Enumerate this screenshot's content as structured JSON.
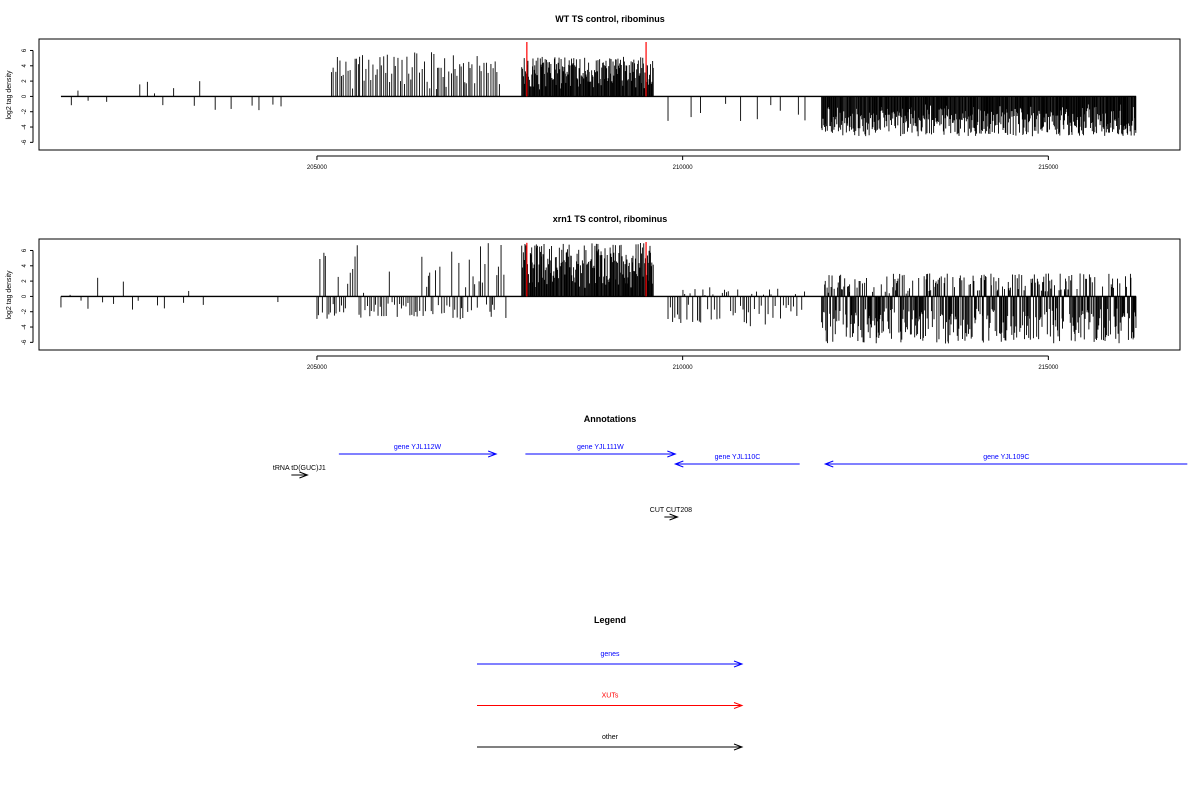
{
  "chart_data": [
    {
      "type": "bar",
      "title": "WT TS control, ribominus",
      "ylabel": "log2 tag density",
      "xlabel": "",
      "xlim": [
        201200,
        216800
      ],
      "ylim": [
        -7,
        7.5
      ],
      "xticks": [
        205000,
        210000,
        215000
      ],
      "yticks": [
        6,
        4,
        2,
        0,
        -2,
        -4,
        -6
      ],
      "grid": false,
      "segments": [
        {
          "name": "region-a",
          "x_start": 201500,
          "x_end": 204700,
          "y_min": -1.8,
          "y_max": 2.0,
          "density": "sparse"
        },
        {
          "name": "region-b",
          "x_start": 205200,
          "x_end": 207500,
          "y_min": 0,
          "y_max": 5.8,
          "density": "medium"
        },
        {
          "name": "region-c",
          "x_start": 207800,
          "x_end": 209600,
          "y_min": 0,
          "y_max": 5.2,
          "density": "dense"
        },
        {
          "name": "region-d",
          "x_start": 209800,
          "x_end": 211700,
          "y_min": -3.5,
          "y_max": 0,
          "density": "sparse"
        },
        {
          "name": "region-e",
          "x_start": 211900,
          "x_end": 216200,
          "y_min": -5.2,
          "y_max": 0,
          "density": "dense"
        }
      ],
      "highlighted": [
        {
          "x": 207870,
          "y": 7.5,
          "color": "#ff0000"
        },
        {
          "x": 209500,
          "y": 7.5,
          "color": "#ff0000"
        }
      ]
    },
    {
      "type": "bar",
      "title": "xrn1 TS control, ribominus",
      "ylabel": "log2 tag density",
      "xlabel": "",
      "xlim": [
        201200,
        216800
      ],
      "ylim": [
        -7,
        7.5
      ],
      "xticks": [
        205000,
        210000,
        215000
      ],
      "yticks": [
        6,
        4,
        2,
        0,
        -2,
        -4,
        -6
      ],
      "grid": false,
      "segments": [
        {
          "name": "region-a",
          "x_start": 201500,
          "x_end": 204700,
          "y_min": -1.8,
          "y_max": 2.5,
          "density": "sparse"
        },
        {
          "name": "region-b",
          "x_start": 205000,
          "x_end": 207600,
          "y_min": -3.0,
          "y_max": 7.0,
          "density": "medium"
        },
        {
          "name": "region-c",
          "x_start": 207800,
          "x_end": 209600,
          "y_min": 0,
          "y_max": 7.0,
          "density": "dense"
        },
        {
          "name": "region-d",
          "x_start": 209800,
          "x_end": 211700,
          "y_min": -4.0,
          "y_max": 1.2,
          "density": "medium"
        },
        {
          "name": "region-e",
          "x_start": 211900,
          "x_end": 216200,
          "y_min": -6.2,
          "y_max": 3.0,
          "density": "dense"
        }
      ],
      "highlighted": [
        {
          "x": 207870,
          "y": 7.0,
          "color": "#ff0000"
        },
        {
          "x": 209500,
          "y": 7.5,
          "color": "#ff0000"
        }
      ]
    }
  ],
  "annotations": {
    "title": "Annotations",
    "features": [
      {
        "label": "gene YJL112W",
        "color": "#0000ff",
        "x_start": 205300,
        "x_end": 207450,
        "strand": "+",
        "row": 1
      },
      {
        "label": "gene YJL111W",
        "color": "#0000ff",
        "x_start": 207850,
        "x_end": 209900,
        "strand": "+",
        "row": 1
      },
      {
        "label": "gene YJL110C",
        "color": "#0000ff",
        "x_start": 209900,
        "x_end": 211600,
        "strand": "-",
        "row": 2
      },
      {
        "label": "gene YJL109C",
        "color": "#0000ff",
        "x_start": 211950,
        "x_end": 216900,
        "strand": "-",
        "row": 2
      },
      {
        "label": "tRNA tD(GUC)J1",
        "color": "#000000",
        "x_start": 204650,
        "x_end": 204870,
        "strand": "+",
        "row": 3
      },
      {
        "label": "CUT CUT208",
        "color": "#000000",
        "x_start": 209750,
        "x_end": 209930,
        "strand": "+",
        "row": 4
      }
    ]
  },
  "legend": {
    "title": "Legend",
    "items": [
      {
        "label": "genes",
        "color": "#0000ff"
      },
      {
        "label": "XUTs",
        "color": "#ff0000"
      },
      {
        "label": "other",
        "color": "#000000"
      }
    ]
  }
}
